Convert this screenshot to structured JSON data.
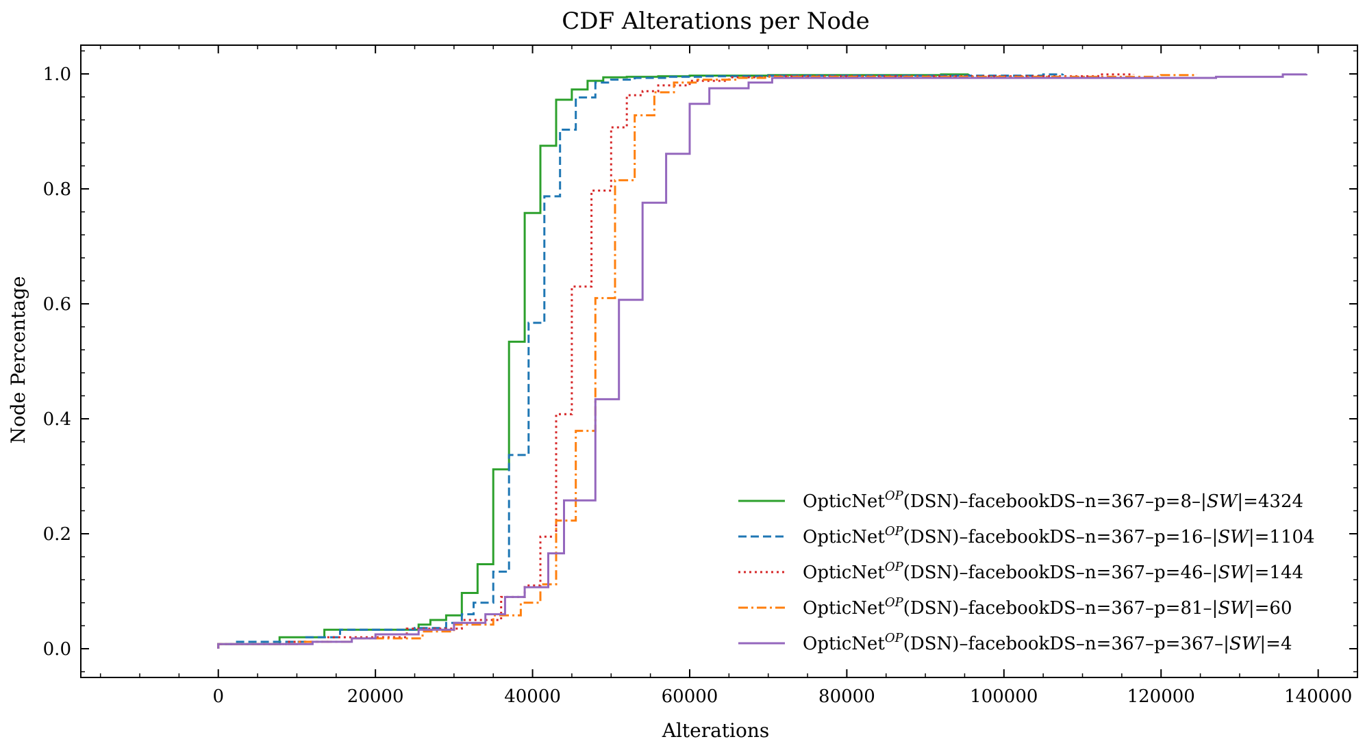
{
  "chart_data": {
    "type": "line",
    "step": true,
    "title": "CDF Alterations per Node",
    "xlabel": "Alterations",
    "ylabel": "Node Percentage",
    "xlim": [
      -17500,
      145000
    ],
    "ylim": [
      -0.05,
      1.05
    ],
    "xticks": [
      0,
      20000,
      40000,
      60000,
      80000,
      100000,
      120000,
      140000
    ],
    "xtick_labels": [
      "0",
      "20000",
      "40000",
      "60000",
      "80000",
      "100000",
      "120000",
      "140000"
    ],
    "yticks": [
      0.0,
      0.2,
      0.4,
      0.6,
      0.8,
      1.0
    ],
    "ytick_labels": [
      "0.0",
      "0.2",
      "0.4",
      "0.6",
      "0.8",
      "1.0"
    ],
    "grid": false,
    "legend_position": "lower-right",
    "series": [
      {
        "name": "OpticNetOP(DSN)–facebookDS–n=367–p=8–|SW|=4324",
        "label_parts": {
          "pre": "OpticNet",
          "sup": "OP",
          "post": "(DSN)–facebookDS–n=367–p=8–",
          "sw": "SW",
          "tail": "=4324"
        },
        "color": "#2ca02c",
        "dash": "solid",
        "x": [
          0,
          7800,
          13500,
          25500,
          27000,
          29000,
          31000,
          33000,
          35000,
          37000,
          39000,
          41000,
          43000,
          45000,
          47000,
          49000,
          52000,
          56000,
          60000,
          70000,
          92000,
          95500
        ],
        "y": [
          0.008,
          0.02,
          0.033,
          0.042,
          0.05,
          0.058,
          0.097,
          0.147,
          0.312,
          0.534,
          0.758,
          0.875,
          0.955,
          0.973,
          0.988,
          0.994,
          0.995,
          0.996,
          0.997,
          0.998,
          0.999,
          1.0
        ]
      },
      {
        "name": "OpticNetOP(DSN)–facebookDS–n=367–p=16–|SW|=1104",
        "label_parts": {
          "pre": "OpticNet",
          "sup": "OP",
          "post": "(DSN)–facebookDS–n=367–p=16–",
          "sw": "SW",
          "tail": "=1104"
        },
        "color": "#1f77b4",
        "dash": "dashed",
        "x": [
          0,
          2000,
          11000,
          15500,
          25000,
          29000,
          31000,
          32500,
          35000,
          37000,
          39500,
          41500,
          43500,
          45500,
          48000,
          50000,
          53000,
          57000,
          62000,
          70000,
          105000,
          107500
        ],
        "y": [
          0.008,
          0.012,
          0.02,
          0.033,
          0.036,
          0.045,
          0.06,
          0.08,
          0.134,
          0.337,
          0.567,
          0.787,
          0.903,
          0.959,
          0.985,
          0.99,
          0.993,
          0.995,
          0.996,
          0.997,
          0.999,
          1.0
        ]
      },
      {
        "name": "OpticNetOP(DSN)–facebookDS–n=367–p=46–|SW|=144",
        "label_parts": {
          "pre": "OpticNet",
          "sup": "OP",
          "post": "(DSN)–facebookDS–n=367–p=46–",
          "sw": "SW",
          "tail": "=144"
        },
        "color": "#d62728",
        "dash": "dotted",
        "x": [
          0,
          9000,
          14000,
          24000,
          31000,
          36000,
          39000,
          41000,
          43000,
          45000,
          47500,
          50000,
          52000,
          54000,
          56000,
          60000,
          65000,
          70000,
          112000,
          116500
        ],
        "y": [
          0.008,
          0.012,
          0.02,
          0.035,
          0.05,
          0.09,
          0.11,
          0.195,
          0.408,
          0.63,
          0.797,
          0.907,
          0.963,
          0.97,
          0.98,
          0.988,
          0.994,
          0.996,
          0.999,
          1.0
        ]
      },
      {
        "name": "OpticNetOP(DSN)–facebookDS–n=367–p=81–|SW|=60",
        "label_parts": {
          "pre": "OpticNet",
          "sup": "OP",
          "post": "(DSN)–facebookDS–n=367–p=81–",
          "sw": "SW",
          "tail": "=60"
        },
        "color": "#ff7f0e",
        "dash": "dashdot",
        "x": [
          0,
          10000,
          17000,
          26000,
          30000,
          35000,
          38500,
          41000,
          43000,
          45500,
          48000,
          50500,
          53000,
          55500,
          58000,
          61000,
          66000,
          70000,
          120000,
          124500
        ],
        "y": [
          0.008,
          0.012,
          0.018,
          0.03,
          0.042,
          0.058,
          0.08,
          0.112,
          0.223,
          0.379,
          0.61,
          0.815,
          0.928,
          0.968,
          0.985,
          0.99,
          0.993,
          0.995,
          0.998,
          1.0
        ]
      },
      {
        "name": "OpticNetOP(DSN)–facebookDS–n=367–p=367–|SW|=4",
        "label_parts": {
          "pre": "OpticNet",
          "sup": "OP",
          "post": "(DSN)–facebookDS–n=367–p=367–",
          "sw": "SW",
          "tail": "=4"
        },
        "color": "#9467bd",
        "dash": "solid",
        "x": [
          0,
          12000,
          17000,
          20000,
          25500,
          30000,
          34000,
          36500,
          39000,
          42000,
          44000,
          48000,
          51000,
          54000,
          57000,
          60000,
          62500,
          67500,
          70500,
          127000,
          135500,
          138500
        ],
        "y": [
          0.008,
          0.012,
          0.018,
          0.025,
          0.033,
          0.045,
          0.06,
          0.09,
          0.107,
          0.166,
          0.258,
          0.434,
          0.607,
          0.776,
          0.861,
          0.948,
          0.975,
          0.985,
          0.993,
          0.995,
          0.999,
          1.0
        ]
      }
    ]
  }
}
